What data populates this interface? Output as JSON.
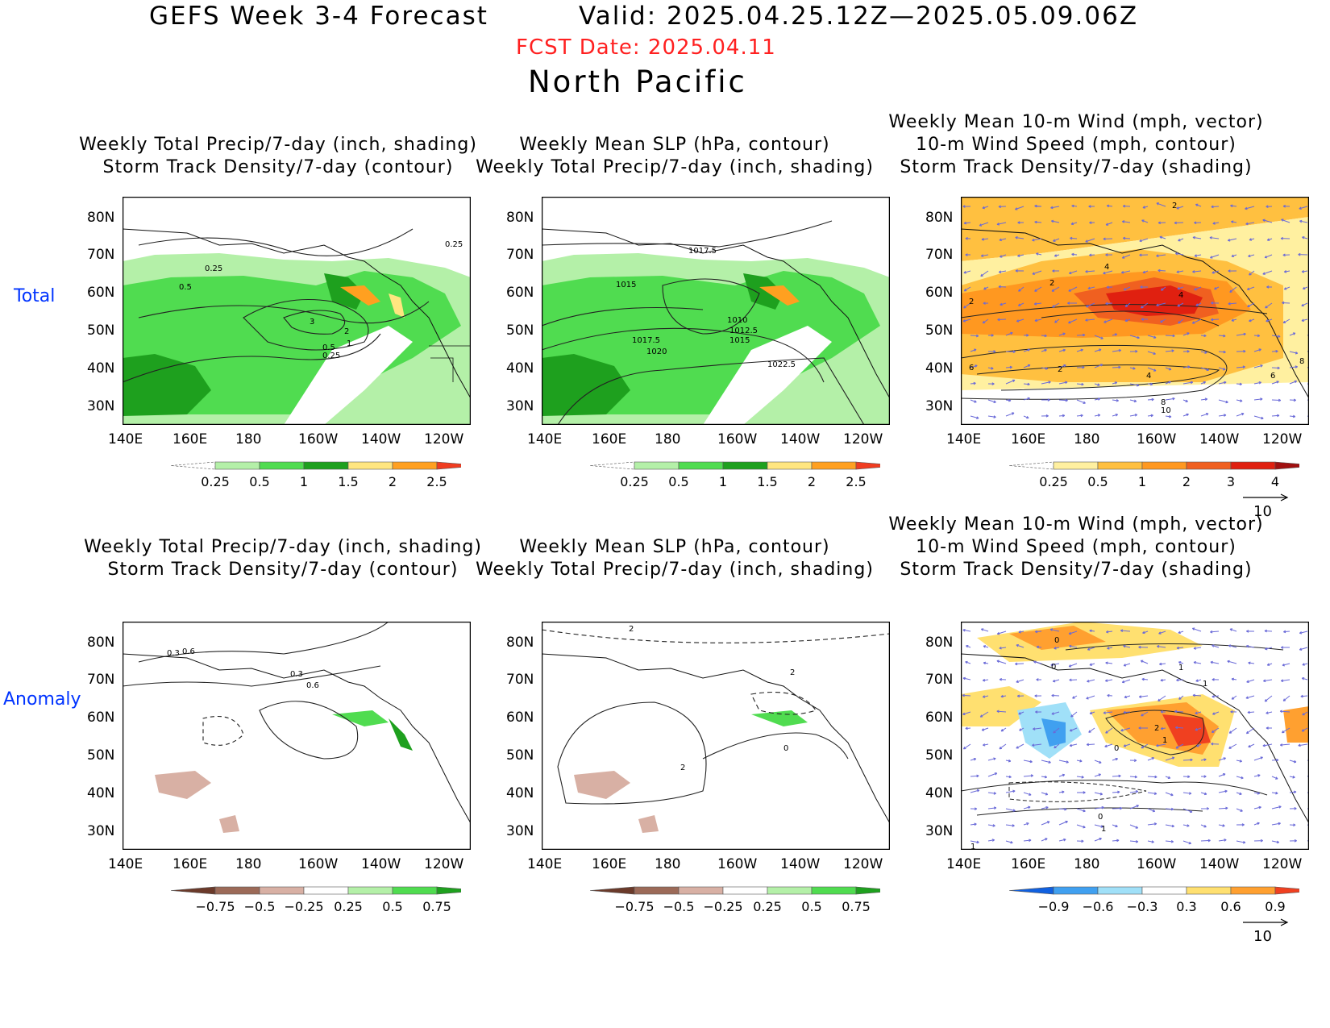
{
  "header": {
    "title": "GEFS Week 3-4 Forecast",
    "valid": "Valid: 2025.04.25.12Z—2025.05.09.06Z",
    "fcst_date": "FCST Date: 2025.04.11",
    "region": "North Pacific"
  },
  "rows": [
    {
      "label": "Total"
    },
    {
      "label": "Anomaly"
    }
  ],
  "panels": [
    {
      "lines": [
        "Weekly Total Precip/7-day (inch, shading)",
        "Storm Track Density/7-day (contour)"
      ]
    },
    {
      "lines": [
        "Weekly Mean SLP (hPa, contour)",
        "Weekly Total Precip/7-day (inch, shading)"
      ]
    },
    {
      "lines": [
        "Weekly Mean 10-m Wind (mph, vector)",
        "10-m Wind Speed (mph, contour)",
        "Storm Track Density/7-day (shading)"
      ]
    },
    {
      "lines": [
        "Weekly Total Precip/7-day (inch, shading)",
        "Storm Track Density/7-day (contour)"
      ]
    },
    {
      "lines": [
        "Weekly Mean SLP (hPa, contour)",
        "Weekly Total Precip/7-day (inch, shading)"
      ]
    },
    {
      "lines": [
        "Weekly Mean 10-m Wind (mph, vector)",
        "10-m Wind Speed (mph, contour)",
        "Storm Track Density/7-day (shading)"
      ]
    }
  ],
  "axes": {
    "lat_labels": [
      "80N",
      "70N",
      "60N",
      "50N",
      "40N",
      "30N"
    ],
    "lon_labels": [
      "140E",
      "160E",
      "180",
      "160W",
      "140W",
      "120W"
    ]
  },
  "colorbars": {
    "precip_total": {
      "labels": [
        "0.25",
        "0.5",
        "1",
        "1.5",
        "2",
        "2.5"
      ],
      "colors": [
        "#ffffff",
        "#b4f0a8",
        "#50dc50",
        "#1ea01e",
        "#ffe680",
        "#ffa020",
        "#f03c20"
      ]
    },
    "storm_total": {
      "labels": [
        "0.25",
        "0.5",
        "1",
        "2",
        "3",
        "4"
      ],
      "colors": [
        "#ffffff",
        "#fff0a0",
        "#ffc040",
        "#ff9820",
        "#f06020",
        "#e02010",
        "#a01010"
      ]
    },
    "precip_anom": {
      "labels": [
        "−0.75",
        "−0.5",
        "−0.25",
        "0.25",
        "0.5",
        "0.75"
      ],
      "colors": [
        "#6b3a2a",
        "#9c6a58",
        "#d8b0a4",
        "#ffffff",
        "#b4f0a8",
        "#50dc50",
        "#1ea01e"
      ]
    },
    "storm_anom": {
      "labels": [
        "−0.9",
        "−0.6",
        "−0.3",
        "0.3",
        "0.6",
        "0.9"
      ],
      "colors": [
        "#1060e0",
        "#40a0f0",
        "#a0e0f8",
        "#ffffff",
        "#ffe070",
        "#ffa030",
        "#f04020"
      ]
    }
  },
  "vector_ref": "10",
  "contour_labels": {
    "p1": [
      "0.25",
      "0.5",
      "0.25",
      "3",
      "2",
      "1",
      "0.5",
      "0.25"
    ],
    "p2": [
      "1017.5",
      "1015",
      "1010",
      "1012.5",
      "1015",
      "1017.5",
      "1020",
      "1022.5"
    ],
    "p3": [
      "2",
      "4",
      "2",
      "2",
      "8",
      "2",
      "4",
      "6",
      "8",
      "10",
      "6",
      "4"
    ],
    "p4": [
      "0.6",
      "0.3",
      "0.3",
      "0.6"
    ],
    "p5": [
      "2",
      "2",
      "0",
      "2"
    ],
    "p6": [
      "0",
      "0",
      "1",
      "1",
      "2",
      "1",
      "0",
      "0",
      "1",
      "1"
    ]
  }
}
